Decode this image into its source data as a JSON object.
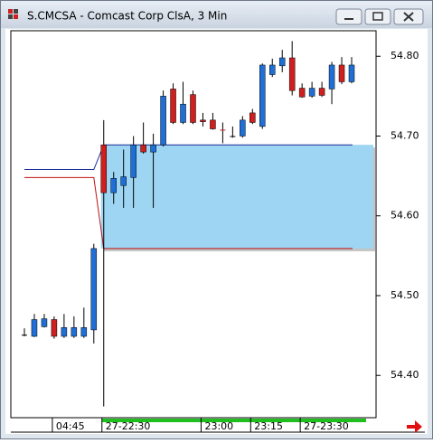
{
  "window_title": "S.CMCSA - Comcast Corp ClsA, 3 Min",
  "chart_data": {
    "type": "candlestick",
    "categories": [
      null,
      null,
      null,
      "04:45",
      null,
      null,
      null,
      null,
      "27-22:30",
      null,
      null,
      null,
      null,
      null,
      null,
      null,
      null,
      null,
      "23:00",
      null,
      null,
      null,
      null,
      "23:15",
      null,
      null,
      null,
      null,
      "27-23:30",
      null,
      null,
      null,
      null,
      null
    ],
    "open": [
      54.451,
      54.449,
      54.461,
      54.47,
      54.449,
      54.449,
      54.449,
      54.457,
      54.689,
      54.629,
      54.638,
      54.648,
      54.689,
      54.68,
      54.689,
      54.759,
      54.717,
      54.752,
      54.72,
      54.72,
      54.708,
      54.7,
      54.7,
      54.729,
      54.712,
      54.777,
      54.788,
      54.798,
      54.76,
      54.75,
      54.76,
      54.759,
      54.789,
      54.768
    ],
    "high": [
      54.459,
      54.477,
      54.477,
      54.474,
      54.477,
      54.474,
      54.485,
      54.565,
      54.72,
      54.655,
      54.683,
      54.7,
      54.717,
      54.703,
      54.757,
      54.766,
      54.768,
      54.757,
      54.729,
      54.729,
      54.717,
      54.712,
      54.725,
      54.734,
      54.791,
      54.797,
      54.808,
      54.819,
      54.766,
      54.768,
      54.768,
      54.793,
      54.799,
      54.799
    ],
    "low": [
      54.449,
      54.448,
      54.46,
      54.446,
      54.447,
      54.447,
      54.447,
      54.44,
      54.361,
      54.615,
      54.61,
      54.61,
      54.678,
      54.61,
      54.687,
      54.715,
      54.715,
      54.715,
      54.712,
      54.708,
      54.691,
      54.698,
      54.698,
      54.715,
      54.709,
      54.774,
      54.78,
      54.751,
      54.748,
      54.748,
      54.749,
      54.74,
      54.765,
      54.766
    ],
    "close": [
      54.451,
      54.47,
      54.471,
      54.449,
      54.46,
      54.46,
      54.46,
      54.559,
      54.629,
      54.647,
      54.649,
      54.689,
      54.68,
      54.689,
      54.75,
      54.717,
      54.74,
      54.717,
      54.718,
      54.709,
      54.707,
      54.7,
      54.72,
      54.717,
      54.789,
      54.789,
      54.798,
      54.757,
      54.749,
      54.76,
      54.751,
      54.789,
      54.768,
      54.789
    ],
    "up_color": "#1f6fd6",
    "down_color": "#d01f1f",
    "zone": {
      "top": 54.689,
      "bottom": 54.559,
      "pre_top": 54.658,
      "pre_bottom": 54.648,
      "color": "#9dd5f3",
      "top_color": "#1a2d9a",
      "bottom_color": "#c01010"
    },
    "ylim": [
      54.347,
      54.832
    ],
    "yticks": [
      {
        "value": 54.4,
        "label": "54.40"
      },
      {
        "value": 54.5,
        "label": "54.50"
      },
      {
        "value": 54.6,
        "label": "54.60"
      },
      {
        "value": 54.7,
        "label": "54.70"
      },
      {
        "value": 54.8,
        "label": "54.80"
      }
    ],
    "grid": false
  }
}
